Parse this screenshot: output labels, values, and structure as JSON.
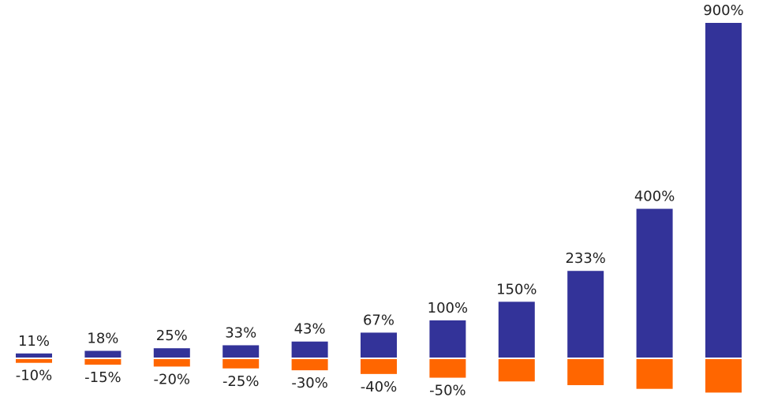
{
  "chart_data": {
    "type": "bar",
    "categories": [
      "",
      "",
      "",
      "",
      "",
      "",
      "",
      "",
      "",
      "",
      ""
    ],
    "series": [
      {
        "values": [
          11,
          18,
          25,
          33,
          43,
          67,
          100,
          150,
          233,
          400,
          900
        ],
        "labels": [
          "11%",
          "18%",
          "25%",
          "33%",
          "43%",
          "67%",
          "100%",
          "150%",
          "233%",
          "400%",
          "900%"
        ],
        "color": "#333399"
      },
      {
        "values": [
          -10,
          -15,
          -20,
          -25,
          -30,
          -40,
          -50,
          -60,
          -70,
          -80,
          -90
        ],
        "labels": [
          "-10%",
          "-15%",
          "-20%",
          "-25%",
          "-30%",
          "-40%",
          "-50%",
          "",
          "",
          "",
          ""
        ],
        "color": "#FF6600"
      }
    ],
    "title": "",
    "xlabel": "",
    "ylabel": "",
    "grid": false,
    "legend": "none"
  }
}
